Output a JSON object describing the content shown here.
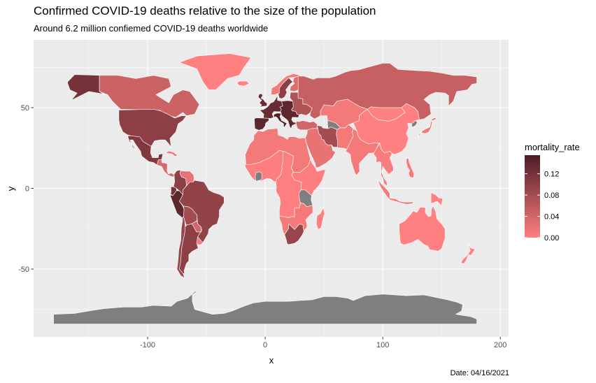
{
  "chart_data": {
    "type": "choropleth-map",
    "title": "Confirmed COVID-19 deaths relative to the size of the population",
    "subtitle": "Around 6.2 million confiemed COVID-19 deaths worldwide",
    "caption": "Date: 04/16/2021",
    "xlabel": "x",
    "ylabel": "y",
    "x_ticks": [
      -100,
      0,
      100,
      200
    ],
    "y_ticks": [
      -50,
      0,
      50
    ],
    "xlim": [
      -197,
      207
    ],
    "ylim": [
      -92,
      92
    ],
    "grid": true,
    "legend": {
      "title": "mortality_rate",
      "placement": "right",
      "ticks": [
        0.12,
        0.08,
        0.04,
        0.0
      ],
      "tick_values": [
        0.12,
        0.08,
        0.04,
        0.0
      ],
      "range": [
        0,
        0.155
      ],
      "color_low": "#ff8080",
      "color_high": "#4d1c24"
    },
    "na_color": "#7f7f7f",
    "regions": [
      {
        "name": "Alaska",
        "rate": 0.12
      },
      {
        "name": "Canada",
        "rate": 0.045
      },
      {
        "name": "Greenland",
        "rate": 0.0
      },
      {
        "name": "United States",
        "rate": 0.1
      },
      {
        "name": "Mexico",
        "rate": 0.11
      },
      {
        "name": "Central America",
        "rate": 0.035
      },
      {
        "name": "Cuba",
        "rate": 0.01
      },
      {
        "name": "Venezuela",
        "rate": 0.02
      },
      {
        "name": "Colombia",
        "rate": 0.1
      },
      {
        "name": "Ecuador",
        "rate": 0.12
      },
      {
        "name": "Peru",
        "rate": 0.14
      },
      {
        "name": "Brazil",
        "rate": 0.095
      },
      {
        "name": "Bolivia",
        "rate": 0.08
      },
      {
        "name": "Paraguay",
        "rate": 0.04
      },
      {
        "name": "Uruguay",
        "rate": 0.01
      },
      {
        "name": "Chile",
        "rate": 0.09
      },
      {
        "name": "Argentina",
        "rate": 0.1
      },
      {
        "name": "Iceland",
        "rate": 0.0
      },
      {
        "name": "United Kingdom",
        "rate": 0.13
      },
      {
        "name": "Norway",
        "rate": 0.01
      },
      {
        "name": "Sweden",
        "rate": 0.1
      },
      {
        "name": "Finland",
        "rate": 0.03
      },
      {
        "name": "Western Europe",
        "rate": 0.13
      },
      {
        "name": "Spain and Portugal",
        "rate": 0.14
      },
      {
        "name": "Italy",
        "rate": 0.15
      },
      {
        "name": "Central Europe",
        "rate": 0.14
      },
      {
        "name": "Eastern Europe",
        "rate": 0.07
      },
      {
        "name": "Russia",
        "rate": 0.05
      },
      {
        "name": "Kazakhstan and Central Asia",
        "rate": 0.01
      },
      {
        "name": "Mongolia",
        "rate": 0.0
      },
      {
        "name": "China",
        "rate": 0.0
      },
      {
        "name": "North Korea",
        "rate": null
      },
      {
        "name": "Japan",
        "rate": 0.01
      },
      {
        "name": "Turkey",
        "rate": 0.04
      },
      {
        "name": "Iran",
        "rate": 0.08
      },
      {
        "name": "Turkmenistan",
        "rate": null
      },
      {
        "name": "Middle East",
        "rate": 0.02
      },
      {
        "name": "Afghanistan and Pakistan",
        "rate": 0.01
      },
      {
        "name": "India",
        "rate": 0.01
      },
      {
        "name": "Southeast Asia",
        "rate": 0.005
      },
      {
        "name": "Indonesia",
        "rate": 0.01
      },
      {
        "name": "Philippines",
        "rate": 0.01
      },
      {
        "name": "Papua New Guinea",
        "rate": 0.0
      },
      {
        "name": "Australia",
        "rate": 0.0
      },
      {
        "name": "New Zealand",
        "rate": 0.0
      },
      {
        "name": "North Africa",
        "rate": 0.01
      },
      {
        "name": "West Africa",
        "rate": 0.003
      },
      {
        "name": "Ivory Coast region",
        "rate": null
      },
      {
        "name": "Central Africa",
        "rate": 0.002
      },
      {
        "name": "East Africa",
        "rate": 0.003
      },
      {
        "name": "Tanzania",
        "rate": null
      },
      {
        "name": "Southern Africa",
        "rate": 0.01
      },
      {
        "name": "South Africa",
        "rate": 0.09
      },
      {
        "name": "Madagascar",
        "rate": 0.001
      },
      {
        "name": "Antarctica",
        "rate": null
      }
    ]
  }
}
